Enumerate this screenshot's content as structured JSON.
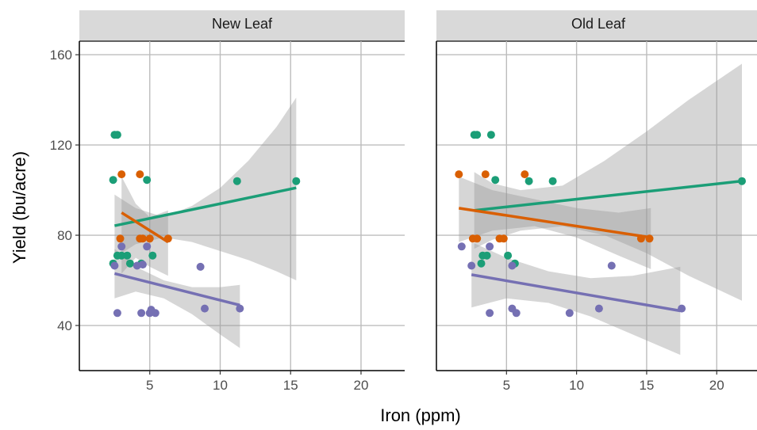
{
  "chart_data": {
    "type": "scatter",
    "xlabel": "Iron (ppm)",
    "ylabel": "Yield (bu/acre)",
    "xlim": [
      0,
      23.1
    ],
    "ylim": [
      20,
      166
    ],
    "x_ticks": [
      5,
      10,
      15,
      20
    ],
    "y_ticks": [
      40,
      80,
      120,
      160
    ],
    "x_tick_labels": [
      "5",
      "10",
      "15",
      "20"
    ],
    "y_tick_labels": [
      "40",
      "80",
      "120",
      "160"
    ],
    "grid": true,
    "legend": "none",
    "colors": {
      "teal": "#1b9e77",
      "orange": "#d95f02",
      "purple": "#7570b3",
      "band": "#999999",
      "strip": "#d9d9d9",
      "grid": "#bdbdbd"
    },
    "facets": [
      {
        "title": "New Leaf",
        "series": [
          {
            "color": "teal",
            "points": [
              [
                2.5,
                124.5
              ],
              [
                2.7,
                124.5
              ],
              [
                2.4,
                104.5
              ],
              [
                4.8,
                104.5
              ],
              [
                11.2,
                104
              ],
              [
                15.4,
                104
              ],
              [
                2.7,
                71
              ],
              [
                3.0,
                71
              ],
              [
                3.4,
                71
              ],
              [
                5.2,
                71
              ],
              [
                2.4,
                67.5
              ],
              [
                3.6,
                67.5
              ],
              [
                4.4,
                67.5
              ]
            ],
            "fit": [
              2.5,
              84.2,
              15.4,
              101
            ],
            "band": {
              "x": [
                2.5,
                4,
                6,
                8,
                10,
                12,
                14,
                15.4
              ],
              "lo": [
                70,
                76,
                79,
                77,
                73,
                69,
                64,
                60
              ],
              "hi": [
                98,
                92,
                88,
                93,
                101,
                113,
                128,
                141
              ]
            }
          },
          {
            "color": "orange",
            "points": [
              [
                3.0,
                107
              ],
              [
                4.3,
                107
              ],
              [
                2.9,
                78.5
              ],
              [
                4.3,
                78.5
              ],
              [
                4.5,
                78.5
              ],
              [
                5.0,
                78.5
              ],
              [
                6.3,
                78.5
              ]
            ],
            "fit": [
              3.0,
              90,
              6.3,
              77
            ],
            "band": {
              "x": [
                3.0,
                4,
                5,
                6.3
              ],
              "lo": [
                63,
                70,
                66,
                62
              ],
              "hi": [
                106,
                94,
                88,
                91
              ]
            }
          },
          {
            "color": "purple",
            "points": [
              [
                2.5,
                66.5
              ],
              [
                3.0,
                75
              ],
              [
                4.1,
                66.5
              ],
              [
                4.5,
                67
              ],
              [
                4.8,
                75
              ],
              [
                8.6,
                66
              ],
              [
                2.7,
                45.5
              ],
              [
                4.4,
                45.5
              ],
              [
                5.0,
                45.5
              ],
              [
                5.4,
                45.5
              ],
              [
                5.1,
                47
              ],
              [
                8.9,
                47.5
              ],
              [
                11.4,
                47.5
              ]
            ],
            "fit": [
              2.5,
              63,
              11.4,
              49
            ],
            "band": {
              "x": [
                2.5,
                4,
                6,
                8,
                10,
                11.4
              ],
              "lo": [
                52,
                55,
                52,
                45,
                36,
                30
              ],
              "hi": [
                74,
                66,
                60,
                57,
                57,
                58
              ]
            }
          }
        ]
      },
      {
        "title": "Old Leaf",
        "series": [
          {
            "color": "teal",
            "points": [
              [
                2.7,
                124.5
              ],
              [
                2.9,
                124.5
              ],
              [
                3.9,
                124.5
              ],
              [
                4.2,
                104.5
              ],
              [
                6.6,
                104
              ],
              [
                8.3,
                104
              ],
              [
                21.8,
                104
              ],
              [
                3.3,
                71
              ],
              [
                3.6,
                71
              ],
              [
                5.1,
                71
              ],
              [
                3.2,
                67.5
              ],
              [
                5.6,
                67.5
              ]
            ],
            "fit": [
              2.7,
              91,
              21.8,
              104
            ],
            "band": {
              "x": [
                2.7,
                4,
                6,
                9,
                12,
                15,
                18,
                21.8
              ],
              "lo": [
                74,
                78,
                82,
                84,
                80,
                72,
                62,
                51
              ],
              "hi": [
                108,
                103,
                100,
                102,
                113,
                126,
                140,
                156
              ]
            }
          },
          {
            "color": "orange",
            "points": [
              [
                1.6,
                107
              ],
              [
                3.5,
                107
              ],
              [
                6.3,
                107
              ],
              [
                2.6,
                78.5
              ],
              [
                2.9,
                78.5
              ],
              [
                4.5,
                78.5
              ],
              [
                4.8,
                78.5
              ],
              [
                14.6,
                78.5
              ],
              [
                15.2,
                78.5
              ]
            ],
            "fit": [
              1.6,
              92,
              15.3,
              79
            ],
            "band": {
              "x": [
                1.6,
                4,
                7,
                10,
                13,
                15.3
              ],
              "lo": [
                77,
                82,
                84,
                79,
                71,
                65
              ],
              "hi": [
                106,
                100,
                96,
                92,
                90,
                92
              ]
            }
          },
          {
            "color": "purple",
            "points": [
              [
                1.8,
                75
              ],
              [
                2.5,
                66.5
              ],
              [
                3.8,
                75
              ],
              [
                5.4,
                66.5
              ],
              [
                12.5,
                66.5
              ],
              [
                3.8,
                45.5
              ],
              [
                5.4,
                47.5
              ],
              [
                5.7,
                45.5
              ],
              [
                9.5,
                45.5
              ],
              [
                11.6,
                47.5
              ],
              [
                17.5,
                47.5
              ]
            ],
            "fit": [
              2.5,
              62.5,
              17.4,
              46.5
            ],
            "band": {
              "x": [
                2.5,
                5,
                8,
                11,
                14,
                17.4
              ],
              "lo": [
                48,
                52,
                50,
                44,
                36,
                27
              ],
              "hi": [
                77,
                70,
                64,
                61,
                62,
                66
              ]
            }
          }
        ]
      }
    ]
  }
}
